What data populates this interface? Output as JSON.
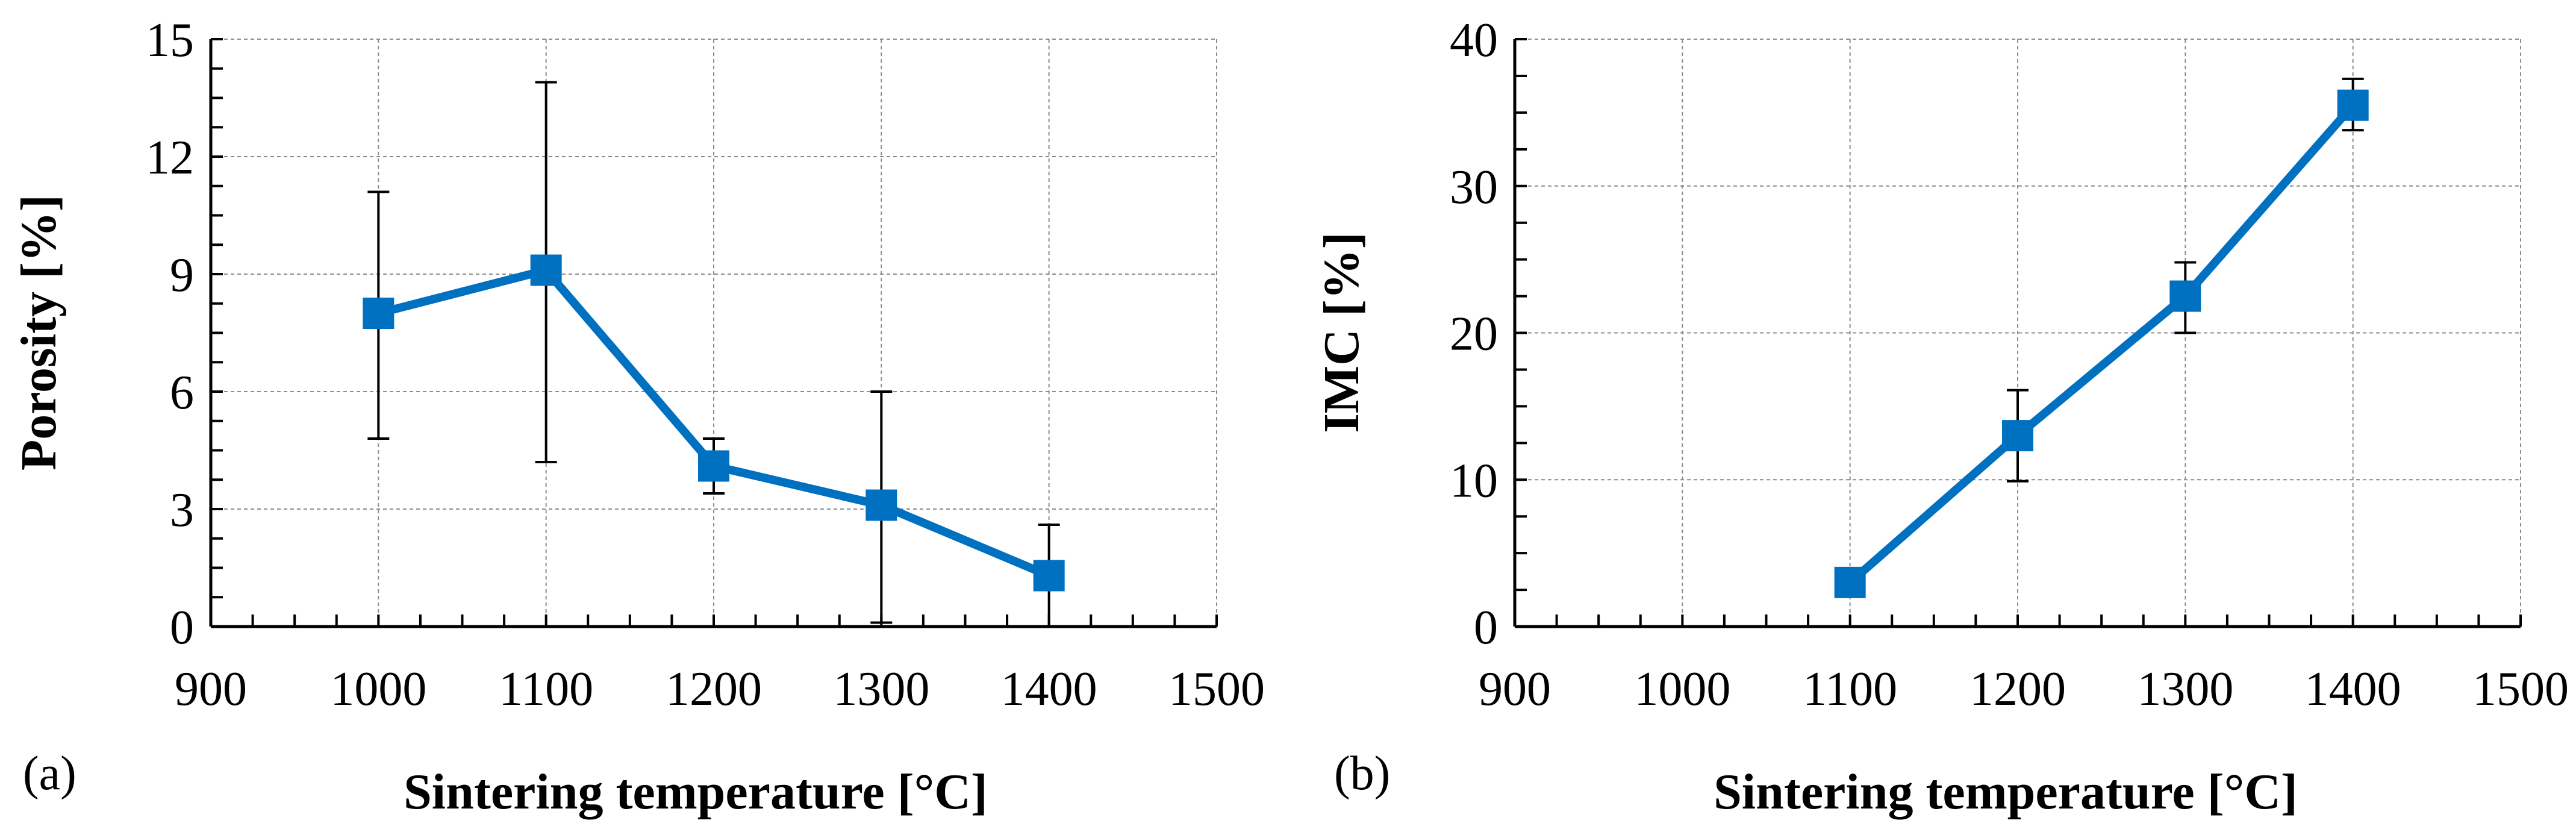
{
  "chart_data": [
    {
      "type": "line",
      "panel_label": "(a)",
      "xlabel": "Sintering temperature [°C]",
      "ylabel": "Porosity [%]",
      "xlim": [
        900,
        1500
      ],
      "ylim": [
        0,
        15
      ],
      "xticks": [
        900,
        1000,
        1100,
        1200,
        1300,
        1400,
        1500
      ],
      "yticks": [
        0,
        3,
        6,
        9,
        12,
        15
      ],
      "grid": true,
      "series": [
        {
          "name": "Porosity",
          "color": "#0070C0",
          "x": [
            1000,
            1100,
            1200,
            1300,
            1400
          ],
          "y": [
            8.0,
            9.1,
            4.1,
            3.1,
            1.3
          ],
          "err_low": [
            4.8,
            4.2,
            3.4,
            0.1,
            0.0
          ],
          "err_high": [
            11.1,
            13.9,
            4.8,
            6.0,
            2.6
          ]
        }
      ]
    },
    {
      "type": "line",
      "panel_label": "(b)",
      "xlabel": "Sintering temperature [°C]",
      "ylabel": "IMC [%]",
      "xlim": [
        900,
        1500
      ],
      "ylim": [
        0,
        40
      ],
      "xticks": [
        900,
        1000,
        1100,
        1200,
        1300,
        1400,
        1500
      ],
      "yticks": [
        0,
        10,
        20,
        30,
        40
      ],
      "grid": true,
      "series": [
        {
          "name": "IMC",
          "color": "#0070C0",
          "x": [
            1100,
            1200,
            1300,
            1400
          ],
          "y": [
            3.0,
            13.0,
            22.5,
            35.5
          ],
          "err_low": [
            3.0,
            9.9,
            20.0,
            33.8
          ],
          "err_high": [
            3.0,
            16.1,
            24.8,
            37.3
          ]
        }
      ]
    }
  ]
}
